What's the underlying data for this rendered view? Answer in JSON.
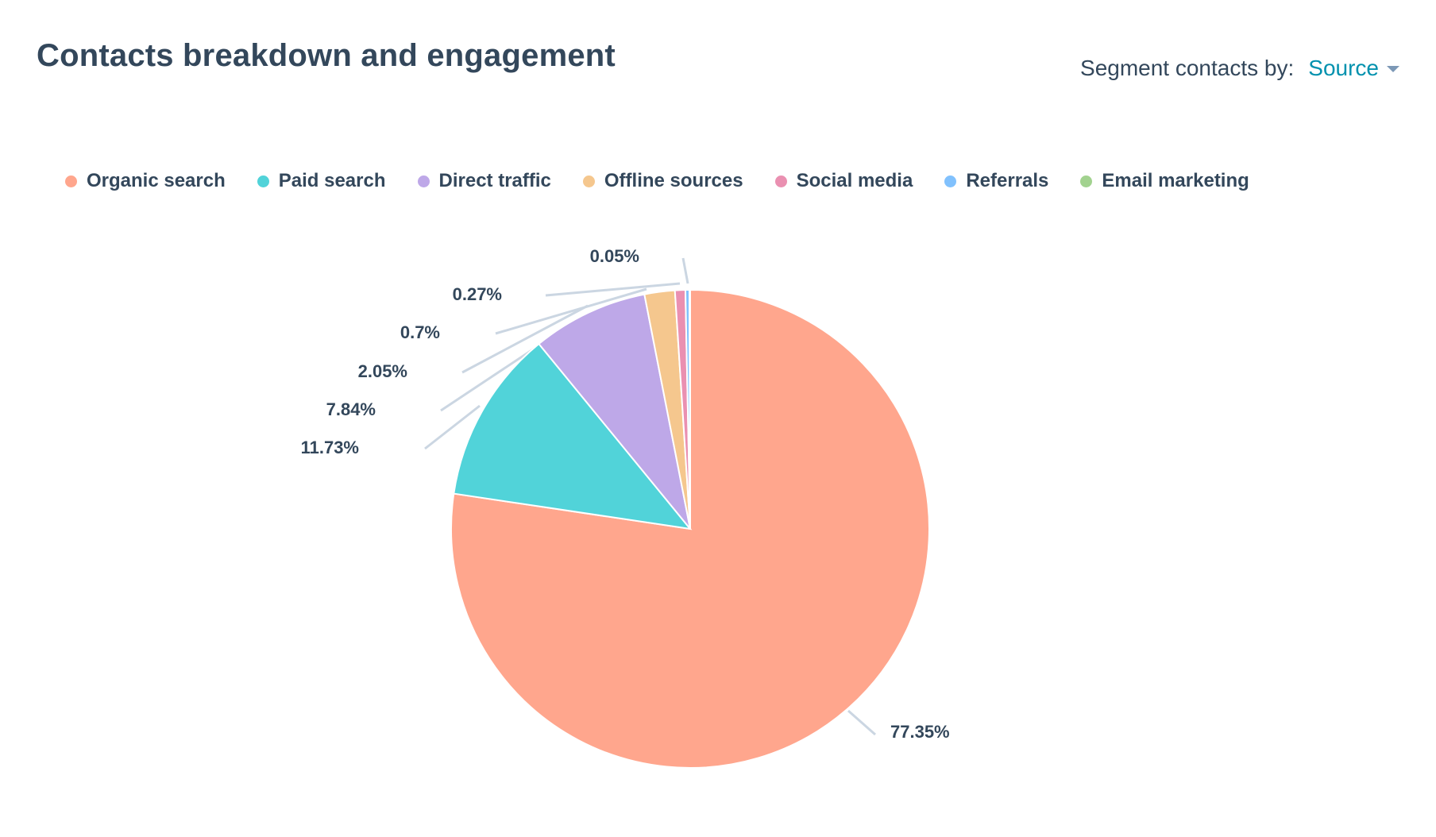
{
  "header": {
    "title": "Contacts breakdown and engagement",
    "segment_label": "Segment contacts by:",
    "segment_value": "Source"
  },
  "chart_data": {
    "type": "pie",
    "title": "Contacts breakdown and engagement",
    "legend_position": "top-left",
    "categories": [
      "Organic search",
      "Paid search",
      "Direct traffic",
      "Offline sources",
      "Social media",
      "Referrals",
      "Email marketing"
    ],
    "values": [
      77.35,
      11.73,
      7.84,
      2.05,
      0.7,
      0.27,
      0.05
    ],
    "labels": [
      "77.35%",
      "11.73%",
      "7.84%",
      "2.05%",
      "0.7%",
      "0.27%",
      "0.05%"
    ],
    "colors": [
      "#ffa68d",
      "#51d3d9",
      "#bea8e8",
      "#f5c78e",
      "#ea90b1",
      "#81c1fd",
      "#a2d28f"
    ]
  }
}
